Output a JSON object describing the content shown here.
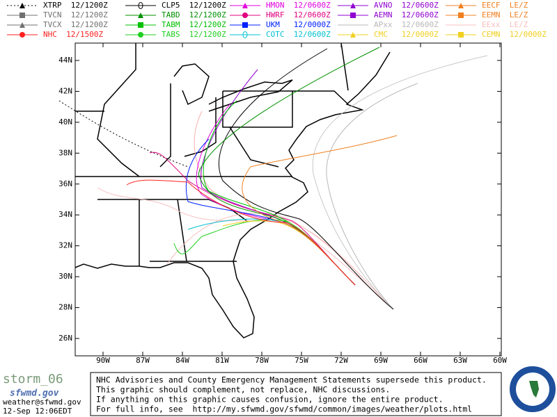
{
  "legend": {
    "items": [
      {
        "label": "XTRP  12/1200Z",
        "color": "#000000",
        "marker": "triangle",
        "dash": true
      },
      {
        "label": "CLP5  12/1200Z",
        "color": "#000000",
        "marker": "ring"
      },
      {
        "label": "HMON  12/0600Z",
        "color": "#e000e0",
        "marker": "triangle"
      },
      {
        "label": "AVNO  12/0600Z",
        "color": "#9000d0",
        "marker": "triangle"
      },
      {
        "label": "EECF  LE/Z",
        "color": "#f08020",
        "marker": "triangle"
      },
      {
        "label": "TVCN  12/1200Z",
        "color": "#707070",
        "marker": "square"
      },
      {
        "label": "TABD  12/1200Z",
        "color": "#009000",
        "marker": "triangle"
      },
      {
        "label": "HWRF  12/0600Z",
        "color": "#e0007f",
        "marker": "circle"
      },
      {
        "label": "AEMN  12/0600Z",
        "color": "#9000d0",
        "marker": "square"
      },
      {
        "label": "EEMN  LE/Z",
        "color": "#f08020",
        "marker": "square"
      },
      {
        "label": "TVCX  12/1200Z",
        "color": "#707070",
        "marker": "triangle"
      },
      {
        "label": "TABM  12/1200Z",
        "color": "#00c000",
        "marker": "square"
      },
      {
        "label": "UKM   12/0000Z",
        "color": "#0020ff",
        "marker": "square"
      },
      {
        "label": "APxx  12/0600Z",
        "color": "#b8b8b8",
        "marker": "none"
      },
      {
        "label": "EExx  LE/Z",
        "color": "#f8c0c0",
        "marker": "none"
      },
      {
        "label": "NHC  12/1500Z",
        "color": "#ff2020",
        "marker": "circle"
      },
      {
        "label": "TABS  12/1200Z",
        "color": "#20d020",
        "marker": "circle"
      },
      {
        "label": "COTC  12/0600Z",
        "color": "#00c0d0",
        "marker": "ring"
      },
      {
        "label": "CMC   12/0000Z",
        "color": "#f0d020",
        "marker": "triangle"
      },
      {
        "label": "CEMN  12/0000Z",
        "color": "#f0d020",
        "marker": "square"
      }
    ]
  },
  "map": {
    "lon_ticks": [
      {
        "value": -90,
        "label": "90W"
      },
      {
        "value": -87,
        "label": "87W"
      },
      {
        "value": -84,
        "label": "84W"
      },
      {
        "value": -81,
        "label": "81W"
      },
      {
        "value": -78,
        "label": "78W"
      },
      {
        "value": -75,
        "label": "75W"
      },
      {
        "value": -72,
        "label": "72W"
      },
      {
        "value": -69,
        "label": "69W"
      },
      {
        "value": -66,
        "label": "66W"
      },
      {
        "value": -63,
        "label": "63W"
      },
      {
        "value": -60,
        "label": "60W"
      }
    ],
    "lat_ticks": [
      {
        "value": 26,
        "label": "26N"
      },
      {
        "value": 28,
        "label": "28N"
      },
      {
        "value": 30,
        "label": "30N"
      },
      {
        "value": 32,
        "label": "32N"
      },
      {
        "value": 34,
        "label": "34N"
      },
      {
        "value": 36,
        "label": "36N"
      },
      {
        "value": 38,
        "label": "38N"
      },
      {
        "value": 40,
        "label": "40N"
      },
      {
        "value": 42,
        "label": "42N"
      },
      {
        "value": 44,
        "label": "44N"
      }
    ]
  },
  "footer": {
    "product": "storm_06",
    "site": "sfwmd.gov",
    "email": "weather@sfwmd.gov",
    "timestamp": "12-Sep 12:06EDT",
    "notice": [
      "NHC Advisories and County Emergency Management Statements supersede this product.",
      "This graphic should complement, not replace, NHC discussions.",
      "If anything on this graphic causes confusion, ignore the entire product.",
      "For full info, see  http://my.sfwmd.gov/sfwmd/common/images/weather/plots.html"
    ]
  }
}
